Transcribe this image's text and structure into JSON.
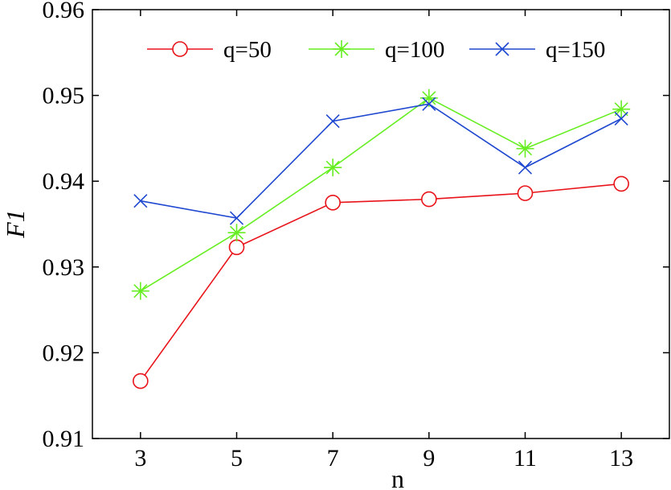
{
  "chart_data": {
    "type": "line",
    "title": "",
    "xlabel": "n",
    "ylabel": "F1",
    "x": [
      3,
      5,
      7,
      9,
      11,
      13
    ],
    "xticks": [
      "3",
      "5",
      "7",
      "9",
      "11",
      "13"
    ],
    "yticks": [
      "0.91",
      "0.92",
      "0.93",
      "0.94",
      "0.95",
      "0.96"
    ],
    "xlim": [
      2,
      14
    ],
    "ylim": [
      0.91,
      0.96
    ],
    "grid": false,
    "legend_position": "top",
    "series": [
      {
        "name": "q=50",
        "color": "#e8141a",
        "marker": "circle",
        "values": [
          0.9167,
          0.9323,
          0.9375,
          0.9379,
          0.9386,
          0.9397
        ]
      },
      {
        "name": "q=100",
        "color": "#66ee22",
        "marker": "asterisk",
        "values": [
          0.9272,
          0.934,
          0.9416,
          0.9497,
          0.9438,
          0.9484
        ]
      },
      {
        "name": "q=150",
        "color": "#1f48d0",
        "marker": "x",
        "values": [
          0.9377,
          0.9357,
          0.947,
          0.949,
          0.9416,
          0.9473
        ]
      }
    ]
  }
}
